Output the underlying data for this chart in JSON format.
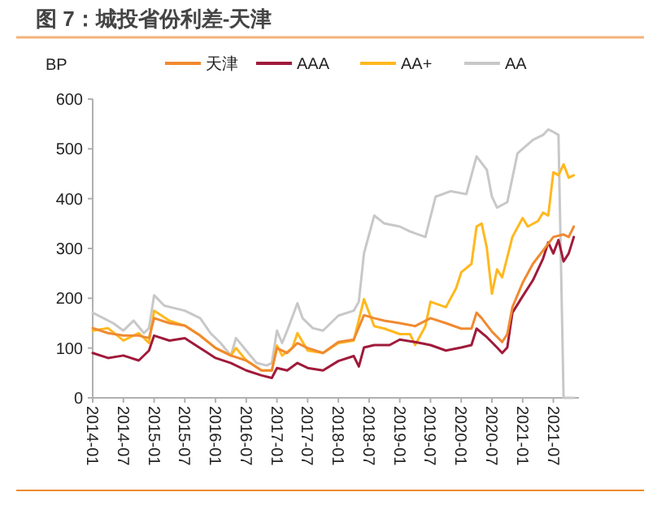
{
  "chart_data": {
    "type": "line",
    "title": "图 7：城投省份利差-天津",
    "ylabel": "BP",
    "legend": "top",
    "grid": false,
    "xlim": [
      "2014-01",
      "2021-12"
    ],
    "xticks": [
      "2014-01",
      "2014-07",
      "2015-01",
      "2015-07",
      "2016-01",
      "2016-07",
      "2017-01",
      "2017-07",
      "2018-01",
      "2018-07",
      "2019-01",
      "2019-07",
      "2020-01",
      "2020-07",
      "2021-01",
      "2021-07"
    ],
    "ylim": [
      0,
      600
    ],
    "yticks": [
      0,
      100,
      200,
      300,
      400,
      500,
      600
    ],
    "series": [
      {
        "name": "天津",
        "color": "#f08a30",
        "x": [
          "2014-01",
          "2014-04",
          "2014-07",
          "2014-10",
          "2014-12",
          "2015-01",
          "2015-04",
          "2015-07",
          "2015-10",
          "2016-01",
          "2016-04",
          "2016-07",
          "2016-10",
          "2016-12",
          "2017-01",
          "2017-03",
          "2017-05",
          "2017-07",
          "2017-10",
          "2018-01",
          "2018-04",
          "2018-06",
          "2018-08",
          "2018-10",
          "2019-01",
          "2019-04",
          "2019-07",
          "2019-10",
          "2020-01",
          "2020-03",
          "2020-04",
          "2020-05",
          "2020-07",
          "2020-09",
          "2020-10",
          "2020-11",
          "2021-01",
          "2021-03",
          "2021-05",
          "2021-07",
          "2021-09",
          "2021-10",
          "2021-11"
        ],
        "values": [
          140,
          130,
          125,
          125,
          120,
          160,
          150,
          145,
          125,
          100,
          85,
          75,
          55,
          55,
          100,
          90,
          110,
          100,
          90,
          112,
          117,
          166,
          160,
          155,
          150,
          144,
          160,
          150,
          139,
          139,
          171,
          160,
          133,
          112,
          128,
          182,
          231,
          269,
          296,
          323,
          328,
          323,
          344
        ]
      },
      {
        "name": "AAA",
        "color": "#a01a3a",
        "x": [
          "2014-01",
          "2014-04",
          "2014-07",
          "2014-10",
          "2014-12",
          "2015-01",
          "2015-04",
          "2015-07",
          "2015-10",
          "2016-01",
          "2016-04",
          "2016-07",
          "2016-10",
          "2016-12",
          "2017-01",
          "2017-03",
          "2017-05",
          "2017-07",
          "2017-10",
          "2018-01",
          "2018-04",
          "2018-05",
          "2018-06",
          "2018-08",
          "2018-11",
          "2019-01",
          "2019-04",
          "2019-07",
          "2019-10",
          "2020-01",
          "2020-03",
          "2020-04",
          "2020-06",
          "2020-08",
          "2020-09",
          "2020-10",
          "2020-11",
          "2021-01",
          "2021-03",
          "2021-05",
          "2021-06",
          "2021-07",
          "2021-08",
          "2021-09",
          "2021-10",
          "2021-11"
        ],
        "values": [
          90,
          80,
          85,
          75,
          95,
          125,
          115,
          120,
          100,
          80,
          70,
          55,
          45,
          40,
          60,
          55,
          70,
          60,
          55,
          74,
          84,
          63,
          101,
          106,
          106,
          117,
          112,
          106,
          95,
          101,
          106,
          139,
          122,
          101,
          90,
          101,
          171,
          204,
          236,
          280,
          312,
          290,
          317,
          274,
          290,
          323
        ]
      },
      {
        "name": "AA+",
        "color": "#ffb81e",
        "x": [
          "2014-01",
          "2014-04",
          "2014-07",
          "2014-10",
          "2014-12",
          "2015-01",
          "2015-04",
          "2015-07",
          "2015-10",
          "2016-01",
          "2016-04",
          "2016-05",
          "2016-07",
          "2016-10",
          "2016-12",
          "2017-01",
          "2017-02",
          "2017-04",
          "2017-05",
          "2017-07",
          "2017-10",
          "2018-01",
          "2018-04",
          "2018-06",
          "2018-08",
          "2018-10",
          "2019-01",
          "2019-03",
          "2019-04",
          "2019-06",
          "2019-07",
          "2019-10",
          "2019-12",
          "2020-01",
          "2020-03",
          "2020-04",
          "2020-05",
          "2020-06",
          "2020-07",
          "2020-08",
          "2020-09",
          "2020-11",
          "2021-01",
          "2021-02",
          "2021-04",
          "2021-05",
          "2021-06",
          "2021-07",
          "2021-08",
          "2021-09",
          "2021-10",
          "2021-11"
        ],
        "values": [
          135,
          140,
          115,
          130,
          110,
          175,
          155,
          145,
          125,
          100,
          85,
          100,
          75,
          55,
          55,
          105,
          85,
          100,
          130,
          95,
          90,
          110,
          115,
          198,
          144,
          139,
          128,
          128,
          106,
          144,
          193,
          182,
          220,
          252,
          269,
          344,
          350,
          301,
          209,
          258,
          242,
          323,
          361,
          344,
          355,
          372,
          366,
          453,
          447,
          469,
          442,
          447
        ]
      },
      {
        "name": "AA",
        "color": "#c8c8c8",
        "x": [
          "2014-01",
          "2014-05",
          "2014-07",
          "2014-09",
          "2014-11",
          "2014-12",
          "2015-01",
          "2015-03",
          "2015-07",
          "2015-10",
          "2015-12",
          "2016-02",
          "2016-04",
          "2016-05",
          "2016-07",
          "2016-09",
          "2016-11",
          "2016-12",
          "2017-01",
          "2017-02",
          "2017-03",
          "2017-05",
          "2017-06",
          "2017-08",
          "2017-10",
          "2018-01",
          "2018-04",
          "2018-05",
          "2018-06",
          "2018-08",
          "2018-10",
          "2019-01",
          "2019-03",
          "2019-06",
          "2019-08",
          "2019-11",
          "2020-02",
          "2020-04",
          "2020-06",
          "2020-07",
          "2020-08",
          "2020-10",
          "2020-12",
          "2021-03",
          "2021-05",
          "2021-06",
          "2021-07",
          "2021-08",
          "2021-09",
          "2021-10",
          "2021-11"
        ],
        "values": [
          171,
          150,
          135,
          155,
          130,
          140,
          206,
          185,
          175,
          160,
          130,
          110,
          85,
          120,
          95,
          70,
          65,
          70,
          135,
          110,
          135,
          190,
          160,
          140,
          135,
          165,
          175,
          193,
          290,
          366,
          350,
          344,
          334,
          323,
          404,
          415,
          409,
          485,
          458,
          404,
          382,
          393,
          491,
          518,
          528,
          539,
          534,
          528,
          0,
          0,
          0
        ]
      }
    ]
  }
}
